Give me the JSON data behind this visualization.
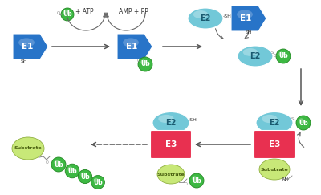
{
  "bg_color": "#ffffff",
  "e1_color": "#2874c8",
  "e2_color": "#72c8d8",
  "e3_color": "#e83050",
  "ub_color": "#3db843",
  "ub_edge": "#228822",
  "substrate_color": "#c8e878",
  "substrate_edge": "#90b040",
  "arrow_color": "#555555",
  "text_color": "#333333",
  "label_e1": "E1",
  "label_e2": "E2",
  "label_e3": "E3",
  "label_ub": "Ub",
  "label_substrate": "Substrate",
  "label_sh": "SH",
  "label_atp": "+ ATP",
  "label_amp": "AMP + PP",
  "label_nh": "NH"
}
